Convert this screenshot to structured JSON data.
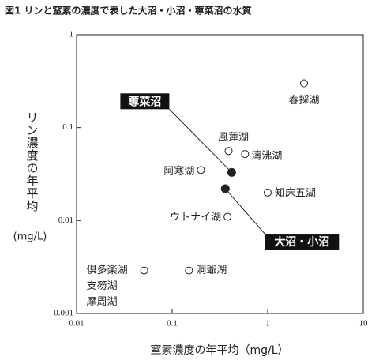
{
  "chart_data": {
    "type": "scatter",
    "title": "図1 リンと窒素の濃度で表した大沼・小沼・蓴菜沼の水質",
    "x_label": "窒素濃度の年平均（mg/L）",
    "y_label": "リン濃度の年平均",
    "y_unit": "(mg/L)",
    "x_log": true,
    "y_log": true,
    "xlim": [
      0.01,
      10
    ],
    "ylim": [
      0.001,
      1
    ],
    "xticks": [
      0.01,
      0.1,
      1,
      10
    ],
    "yticks": [
      0.001,
      0.01,
      0.1,
      1
    ],
    "color": "#222222",
    "points": [
      {
        "labels": [
          "春採湖"
        ],
        "x": 2.4,
        "y": 0.3,
        "filled": false
      },
      {
        "labels": [
          "風蓮湖"
        ],
        "x": 0.39,
        "y": 0.056,
        "filled": false
      },
      {
        "labels": [
          "濤沸湖"
        ],
        "x": 0.58,
        "y": 0.052,
        "filled": false
      },
      {
        "labels": [
          "阿寒湖"
        ],
        "x": 0.2,
        "y": 0.035,
        "filled": false
      },
      {
        "labels": [
          "知床五湖"
        ],
        "x": 1.0,
        "y": 0.02,
        "filled": false
      },
      {
        "labels": [
          "ウトナイ湖"
        ],
        "x": 0.38,
        "y": 0.011,
        "filled": false
      },
      {
        "labels": [
          "倶多楽湖",
          "支笏湖",
          "摩周湖"
        ],
        "x": 0.051,
        "y": 0.0029,
        "filled": false
      },
      {
        "labels": [
          "洞爺湖"
        ],
        "x": 0.15,
        "y": 0.0029,
        "filled": false
      },
      {
        "labels": [
          "蓴菜沼"
        ],
        "x": 0.42,
        "y": 0.033,
        "filled": true
      },
      {
        "labels": [
          "大沼・小沼"
        ],
        "x": 0.36,
        "y": 0.022,
        "filled": true
      }
    ]
  }
}
